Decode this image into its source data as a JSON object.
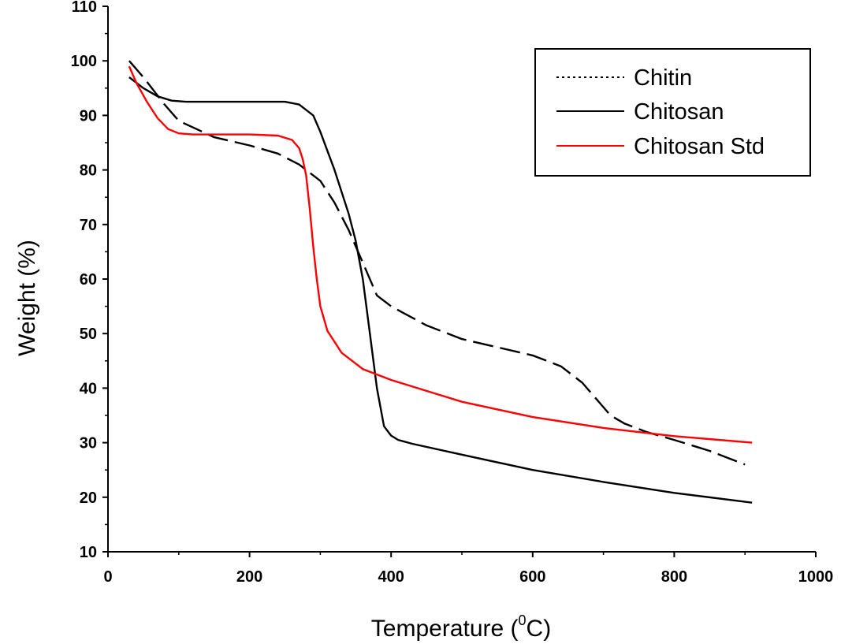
{
  "chart_data": {
    "type": "line",
    "xlabel": "Temperature (",
    "xlabel_sup": "0",
    "xlabel_end": "C)",
    "ylabel": "Weight (%)",
    "xlim": [
      0,
      1000
    ],
    "ylim": [
      10,
      110
    ],
    "x_ticks": [
      0,
      200,
      400,
      600,
      800,
      1000
    ],
    "y_ticks": [
      10,
      20,
      30,
      40,
      50,
      60,
      70,
      80,
      90,
      100,
      110
    ],
    "grid": false,
    "legend_position": "top-right",
    "series": [
      {
        "name": "Chitin",
        "color": "#000000",
        "dash": "dashed",
        "x": [
          30,
          50,
          80,
          100,
          150,
          200,
          240,
          270,
          300,
          320,
          340,
          360,
          380,
          400,
          450,
          500,
          550,
          600,
          640,
          670,
          690,
          710,
          730,
          760,
          800,
          850,
          900
        ],
        "y": [
          100,
          97,
          92,
          89,
          86,
          84.5,
          83,
          81,
          78,
          74,
          69,
          63,
          57,
          55,
          51.5,
          49,
          47.5,
          46,
          44,
          41,
          38,
          35,
          33.5,
          32,
          30.5,
          28.5,
          26
        ]
      },
      {
        "name": "Chitosan",
        "color": "#000000",
        "dash": "solid",
        "x": [
          30,
          50,
          70,
          90,
          110,
          150,
          200,
          250,
          270,
          290,
          300,
          320,
          340,
          350,
          360,
          370,
          380,
          390,
          400,
          410,
          430,
          500,
          600,
          700,
          800,
          910
        ],
        "y": [
          97,
          95,
          93.5,
          92.7,
          92.5,
          92.5,
          92.5,
          92.5,
          92,
          90,
          87,
          80,
          72,
          67,
          60,
          50,
          40,
          33,
          31.3,
          30.5,
          29.8,
          27.8,
          25,
          22.8,
          20.8,
          19
        ]
      },
      {
        "name": "Chitosan Std",
        "color": "#ff0000",
        "dash": "solid",
        "x": [
          30,
          40,
          55,
          70,
          85,
          100,
          120,
          150,
          200,
          240,
          260,
          270,
          275,
          280,
          285,
          290,
          295,
          300,
          310,
          330,
          360,
          400,
          450,
          500,
          600,
          700,
          800,
          910
        ],
        "y": [
          99,
          96,
          92.5,
          89.5,
          87.5,
          86.7,
          86.5,
          86.5,
          86.5,
          86.3,
          85.5,
          84,
          82,
          79,
          73,
          66,
          60,
          55,
          50.5,
          46.5,
          43.5,
          41.5,
          39.5,
          37.5,
          34.7,
          32.7,
          31.2,
          30
        ]
      }
    ]
  }
}
